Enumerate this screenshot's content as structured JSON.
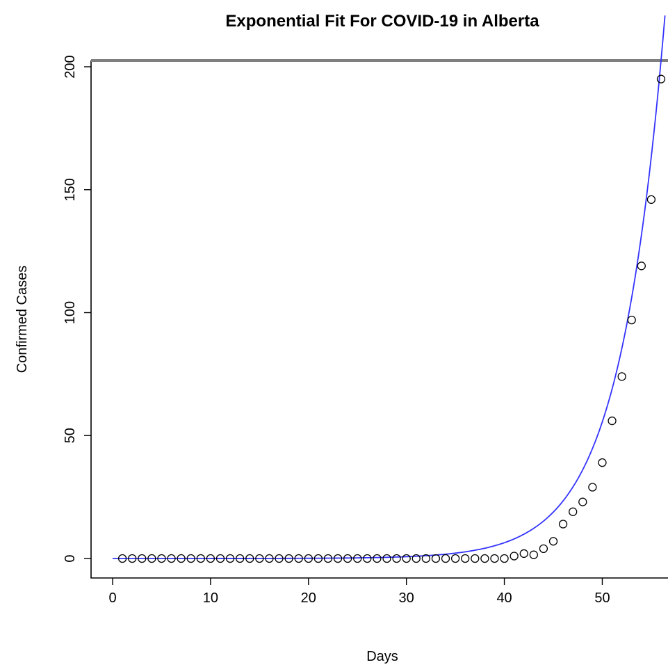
{
  "chart_data": {
    "type": "scatter",
    "title": "Exponential Fit For COVID-19 in Alberta",
    "xlabel": "Days",
    "ylabel": "Confirmed Cases",
    "xlim": [
      0,
      56
    ],
    "ylim": [
      0,
      200
    ],
    "x_ticks": [
      "0",
      "10",
      "20",
      "30",
      "40",
      "50"
    ],
    "y_ticks": [
      "0",
      "50",
      "100",
      "150",
      "200"
    ],
    "grid": false,
    "legend": "none",
    "series": [
      {
        "kind": "points",
        "color": "#000000",
        "marker": "open-circle",
        "x": [
          1,
          2,
          3,
          4,
          5,
          6,
          7,
          8,
          9,
          10,
          11,
          12,
          13,
          14,
          15,
          16,
          17,
          18,
          19,
          20,
          21,
          22,
          23,
          24,
          25,
          26,
          27,
          28,
          29,
          30,
          31,
          32,
          33,
          34,
          35,
          36,
          37,
          38,
          39,
          40,
          41,
          42,
          43,
          44,
          45,
          46,
          47,
          48,
          49,
          50,
          51,
          52,
          53,
          54,
          55,
          56
        ],
        "y": [
          0,
          0,
          0,
          0,
          0,
          0,
          0,
          0,
          0,
          0,
          0,
          0,
          0,
          0,
          0,
          0,
          0,
          0,
          0,
          0,
          0,
          0,
          0,
          0,
          0,
          0,
          0,
          0,
          0,
          0,
          0,
          0,
          0,
          0,
          0,
          0,
          0,
          0,
          0,
          0,
          1,
          2,
          1.5,
          4,
          7,
          14,
          19,
          23,
          29,
          39,
          56,
          74,
          97,
          119,
          146,
          195
        ]
      },
      {
        "kind": "curve",
        "color": "#3333ff",
        "model": "exponential",
        "a": 0.00115,
        "b": 0.2157,
        "x_range": [
          0,
          56.4
        ]
      }
    ]
  }
}
